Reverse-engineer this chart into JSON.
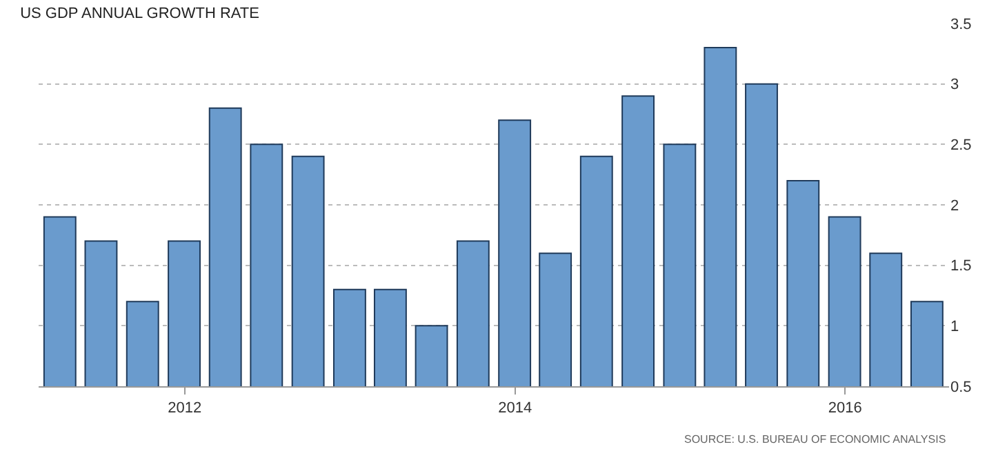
{
  "chart_data": {
    "type": "bar",
    "title": "US GDP ANNUAL GROWTH RATE",
    "x": [
      "2011-03-31",
      "2011-06-30",
      "2011-09-30",
      "2011-12-31",
      "2012-03-31",
      "2012-06-30",
      "2012-09-30",
      "2012-12-31",
      "2013-03-31",
      "2013-06-30",
      "2013-09-30",
      "2013-12-31",
      "2014-03-31",
      "2014-06-30",
      "2014-09-30",
      "2014-12-31",
      "2015-03-31",
      "2015-06-30",
      "2015-09-30",
      "2015-12-31",
      "2016-03-31",
      "2016-06-30"
    ],
    "values": [
      1.9,
      1.7,
      1.2,
      1.7,
      2.8,
      2.5,
      2.4,
      1.3,
      1.3,
      1.0,
      1.7,
      2.7,
      1.6,
      2.4,
      2.9,
      2.5,
      3.3,
      3.0,
      2.2,
      1.9,
      1.6,
      1.2
    ],
    "color": "#6a9bcd",
    "xlim": [
      "2011-02-12",
      "2016-08-18"
    ],
    "xticks": [
      {
        "value": "2012-01-01",
        "label": "2012"
      },
      {
        "value": "2014-01-01",
        "label": "2014"
      },
      {
        "value": "2016-01-01",
        "label": "2016"
      }
    ],
    "ylim": [
      0.5,
      3.5
    ],
    "yticks": [
      0.5,
      1,
      1.5,
      2,
      2.5,
      3,
      3.5
    ],
    "grid": "y",
    "annotations": [
      "SOURCE: U.S. BUREAU OF ECONOMIC ANALYSIS"
    ]
  }
}
